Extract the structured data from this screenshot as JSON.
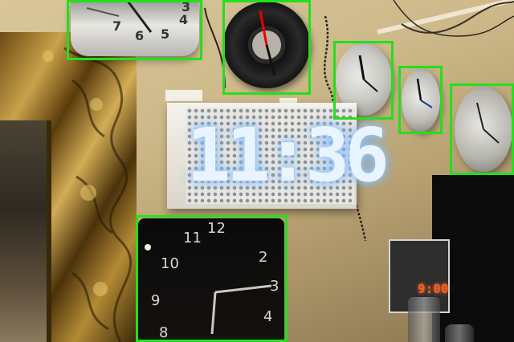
{
  "scene": {
    "wall_color": "#d4c293",
    "detection_box_color": "#22e01c",
    "objects": [
      {
        "name": "clock",
        "id": 1
      },
      {
        "name": "clock",
        "id": 2
      },
      {
        "name": "clock",
        "id": 3
      },
      {
        "name": "clock",
        "id": 4
      },
      {
        "name": "clock",
        "id": 5
      },
      {
        "name": "clock",
        "id": 6
      }
    ]
  },
  "led_clock": {
    "time": "11:36"
  },
  "digital_clock": {
    "time": "9:00",
    "color": "#ff5a1e"
  },
  "square_clock": {
    "numerals": [
      "12",
      "11",
      "10",
      "9",
      "8",
      "4",
      "3",
      "2"
    ]
  }
}
